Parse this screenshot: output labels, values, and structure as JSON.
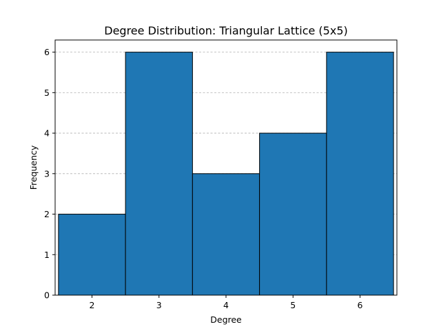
{
  "chart_data": {
    "type": "bar",
    "title": "Degree Distribution: Triangular Lattice (5x5)",
    "xlabel": "Degree",
    "ylabel": "Frequency",
    "categories": [
      "2",
      "3",
      "4",
      "5",
      "6"
    ],
    "x": [
      2,
      3,
      4,
      5,
      6
    ],
    "values": [
      2,
      6,
      3,
      4,
      6
    ],
    "xlim": [
      1.45,
      6.55
    ],
    "ylim": [
      0,
      6.3
    ],
    "yticks": [
      0,
      1,
      2,
      3,
      4,
      5,
      6
    ],
    "grid": "y-dashed",
    "bar_color": "#1f77b4",
    "edge_color": "#000000"
  }
}
